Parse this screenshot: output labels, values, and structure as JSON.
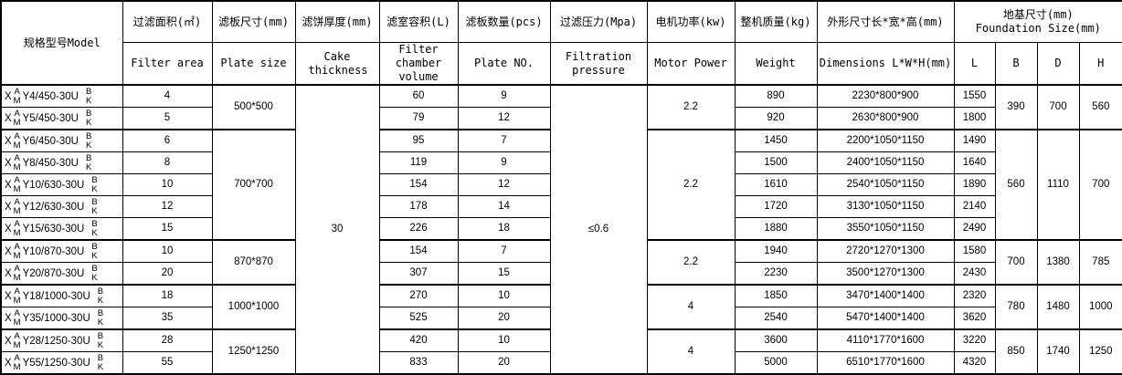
{
  "header": {
    "model": "规格型号Model",
    "filter_area": {
      "cn": "过滤面积(㎡)",
      "en": "Filter area"
    },
    "plate_size": {
      "cn": "滤板尺寸(mm)",
      "en": "Plate size"
    },
    "cake": {
      "cn": "滤饼厚度(mm)",
      "en": "Cake thickness"
    },
    "chamber": {
      "cn": "滤室容积(L)",
      "en": "Filter chamber volume"
    },
    "plates": {
      "cn": "滤板数量(pcs)",
      "en": "Plate NO."
    },
    "pressure": {
      "cn": "过滤压力(Mpa)",
      "en": "Filtration pressure"
    },
    "motor": {
      "cn": "电机功率(kw)",
      "en": "Motor Power"
    },
    "weight": {
      "cn": "整机质量(kg)",
      "en": "Weight"
    },
    "dims": {
      "cn": "外形尺寸长*宽*高(mm)",
      "en": "Dimensions L*W*H(mm)"
    },
    "foundation": {
      "cn": "地基尺寸(mm)",
      "en": "Foundation Size(mm)",
      "L": "L",
      "B": "B",
      "D": "D",
      "H": "H"
    }
  },
  "model_affix": {
    "prefix": "X",
    "top": "A",
    "bottom": "M",
    "suffix_top": "B",
    "suffix_bottom": "K"
  },
  "rows": [
    {
      "model": "Y4/450-30U",
      "area": "4",
      "volume": "60",
      "plates": "9",
      "weight": "890",
      "dims": "2230*800*900",
      "L": "1550"
    },
    {
      "model": "Y5/450-30U",
      "area": "5",
      "volume": "79",
      "plates": "12",
      "weight": "920",
      "dims": "2630*800*900",
      "L": "1800"
    },
    {
      "model": "Y6/450-30U",
      "area": "6",
      "volume": "95",
      "plates": "7",
      "weight": "1450",
      "dims": "2200*1050*1150",
      "L": "1490"
    },
    {
      "model": "Y8/450-30U",
      "area": "8",
      "volume": "119",
      "plates": "9",
      "weight": "1500",
      "dims": "2400*1050*1150",
      "L": "1640"
    },
    {
      "model": "Y10/630-30U",
      "area": "10",
      "volume": "154",
      "plates": "12",
      "weight": "1610",
      "dims": "2540*1050*1150",
      "L": "1890"
    },
    {
      "model": "Y12/630-30U",
      "area": "12",
      "volume": "178",
      "plates": "14",
      "weight": "1720",
      "dims": "3130*1050*1150",
      "L": "2140"
    },
    {
      "model": "Y15/630-30U",
      "area": "15",
      "volume": "226",
      "plates": "18",
      "weight": "1880",
      "dims": "3550*1050*1150",
      "L": "2490"
    },
    {
      "model": "Y10/870-30U",
      "area": "10",
      "volume": "154",
      "plates": "7",
      "weight": "1940",
      "dims": "2720*1270*1300",
      "L": "1580"
    },
    {
      "model": "Y20/870-30U",
      "area": "20",
      "volume": "307",
      "plates": "15",
      "weight": "2230",
      "dims": "3500*1270*1300",
      "L": "2430"
    },
    {
      "model": "Y18/1000-30U",
      "area": "18",
      "volume": "270",
      "plates": "10",
      "weight": "1850",
      "dims": "3470*1400*1400",
      "L": "2320"
    },
    {
      "model": "Y35/1000-30U",
      "area": "35",
      "volume": "525",
      "plates": "20",
      "weight": "2540",
      "dims": "5470*1400*1400",
      "L": "3620"
    },
    {
      "model": "Y28/1250-30U",
      "area": "28",
      "volume": "420",
      "plates": "10",
      "weight": "3600",
      "dims": "4110*1770*1600",
      "L": "3220"
    },
    {
      "model": "Y55/1250-30U",
      "area": "55",
      "volume": "833",
      "plates": "20",
      "weight": "5000",
      "dims": "6510*1770*1600",
      "L": "4320"
    }
  ],
  "groups": [
    {
      "start": 0,
      "span": 2,
      "plate_size": "500*500",
      "motor": "2.2",
      "B": "390",
      "D": "700",
      "H": "560"
    },
    {
      "start": 2,
      "span": 5,
      "plate_size": "700*700",
      "motor": "2.2",
      "B": "560",
      "D": "1110",
      "H": "700"
    },
    {
      "start": 7,
      "span": 2,
      "plate_size": "870*870",
      "motor": "2.2",
      "B": "700",
      "D": "1380",
      "H": "785"
    },
    {
      "start": 9,
      "span": 2,
      "plate_size": "1000*1000",
      "motor": "4",
      "B": "780",
      "D": "1480",
      "H": "1000"
    },
    {
      "start": 11,
      "span": 2,
      "plate_size": "1250*1250",
      "motor": "4",
      "B": "850",
      "D": "1740",
      "H": "1250"
    }
  ],
  "cake_thickness": "30",
  "filtration_pressure": "≤0.6"
}
